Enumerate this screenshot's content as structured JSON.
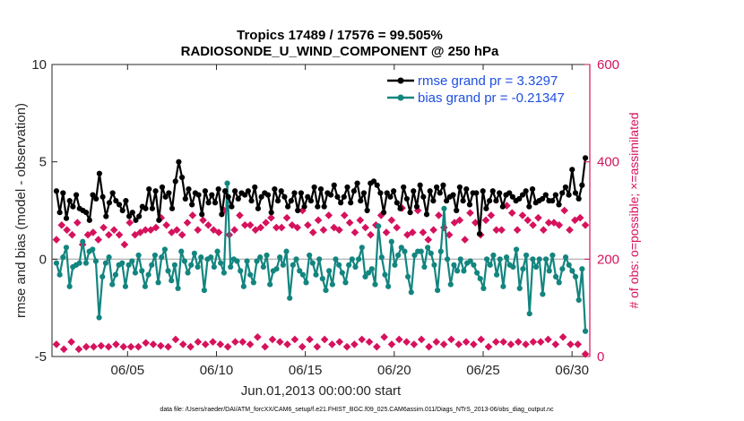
{
  "chart_data": {
    "type": "line",
    "title_line1": "Tropics 17489 / 17576 = 99.505%",
    "title_line2": "RADIOSONDE_U_WIND_COMPONENT @ 250 hPa",
    "xlabel": "Jun.01,2013 00:00:00 start",
    "ylabel": "rmse and bias (model - observation)",
    "ylabel_right": "# of obs: o=possible; ×=assimilated",
    "footnote": "data file: /Users/raeder/DAI/ATM_forcXX/CAM6_setup/f.e21.FHIST_BGC.f09_025.CAM6assim.011/Diags_NTrS_2013-06/obs_diag_output.nc",
    "x_ticks": [
      5,
      10,
      15,
      20,
      25,
      30
    ],
    "x_tick_labels": [
      "06/05",
      "06/10",
      "06/15",
      "06/20",
      "06/25",
      "06/30"
    ],
    "xlim": [
      0.75,
      31.0
    ],
    "ylim": [
      -5,
      10
    ],
    "y_ticks": [
      -5,
      0,
      5,
      10
    ],
    "y_tick_labels": [
      "-5",
      "0",
      "5",
      "10"
    ],
    "ylim_right": [
      0,
      600
    ],
    "y_ticks_right": [
      0,
      200,
      400,
      600
    ],
    "y_tick_labels_right": [
      "0",
      "200",
      "400",
      "600"
    ],
    "colors": {
      "rmse": "#000000",
      "bias": "#13857f",
      "obs": "#d6125d",
      "zero_line": "#b8b8b8",
      "legend_text": "#1f4fe0"
    },
    "series": [
      {
        "name": "rmse",
        "legend": "rmse grand pr = 3.3297",
        "values": [
          3.5,
          2.4,
          3.4,
          2.1,
          3.0,
          2.7,
          3.3,
          2.6,
          2.5,
          2.4,
          2.0,
          3.3,
          3.1,
          4.4,
          3.2,
          2.2,
          2.9,
          3.4,
          3.0,
          2.8,
          2.5,
          3.0,
          2.2,
          2.4,
          2.0,
          2.2,
          2.7,
          2.6,
          3.6,
          2.6,
          3.5,
          2.0,
          3.7,
          3.2,
          3.4,
          2.6,
          4.0,
          5.0,
          4.2,
          3.1,
          3.6,
          2.8,
          3.4,
          3.3,
          2.3,
          3.5,
          2.9,
          3.3,
          2.9,
          3.6,
          2.3,
          3.5,
          3.2,
          2.7,
          3.5,
          3.1,
          3.4,
          3.3,
          3.5,
          3.0,
          3.7,
          2.6,
          3.2,
          3.4,
          3.3,
          2.4,
          3.6,
          3.0,
          3.5,
          3.2,
          2.7,
          3.0,
          3.4,
          2.5,
          3.4,
          2.7,
          3.2,
          3.0,
          3.7,
          2.7,
          3.6,
          2.7,
          3.4,
          3.3,
          3.8,
          3.2,
          2.9,
          3.2,
          3.7,
          2.9,
          3.5,
          3.9,
          3.0,
          3.4,
          2.5,
          3.9,
          4.0,
          3.8,
          3.4,
          2.4,
          3.4,
          3.2,
          3.5,
          2.9,
          2.6,
          3.7,
          3.1,
          2.4,
          3.5,
          2.7,
          3.8,
          3.2,
          2.3,
          3.5,
          3.0,
          3.7,
          3.4,
          3.8,
          3.0,
          3.2,
          3.3,
          2.5,
          3.7,
          3.0,
          3.6,
          2.8,
          3.4,
          3.4,
          1.3,
          3.5,
          2.6,
          3.0,
          3.5,
          3.0,
          3.4,
          2.7,
          3.3,
          3.4,
          3.2,
          3.0,
          3.1,
          3.3,
          3.5,
          2.7,
          3.6,
          2.9,
          3.0,
          3.1,
          3.3,
          3.0,
          3.0,
          3.3,
          2.8,
          3.4,
          3.7,
          3.3,
          4.6,
          3.4,
          3.1,
          3.8,
          5.2
        ]
      },
      {
        "name": "bias",
        "legend": "bias grand pr = -0.21347",
        "values": [
          -0.2,
          -0.8,
          0.1,
          0.6,
          -1.4,
          -0.4,
          -0.3,
          -0.2,
          0.9,
          -0.2,
          0.4,
          0.5,
          -0.1,
          -3.0,
          -0.9,
          -0.2,
          0.1,
          -1.3,
          -0.8,
          -0.3,
          -0.2,
          -1.4,
          -0.3,
          -0.1,
          -0.7,
          0.2,
          -0.6,
          -1.4,
          -0.8,
          -0.3,
          0.2,
          -1.2,
          0.1,
          0.5,
          -0.6,
          -1.1,
          -0.3,
          -1.5,
          0.4,
          -0.1,
          -0.7,
          -0.3,
          0.3,
          -0.4,
          0.1,
          -1.6,
          0.0,
          0.1,
          -0.4,
          0.4,
          -0.2,
          -0.7,
          3.9,
          -0.4,
          0.0,
          -0.1,
          -0.6,
          -1.4,
          -0.1,
          -0.8,
          -1.2,
          -0.1,
          0.1,
          -0.4,
          0.2,
          -1.3,
          -0.6,
          -0.5,
          0.1,
          -0.3,
          0.4,
          -2.0,
          -0.3,
          0.0,
          -0.6,
          -0.8,
          -1.2,
          0.2,
          -0.2,
          -0.8,
          0.0,
          -1.0,
          -1.6,
          -0.6,
          -1.3,
          0.0,
          -0.3,
          -0.7,
          -1.2,
          -0.3,
          0.0,
          -0.4,
          0.0,
          0.6,
          -0.9,
          -0.7,
          -0.5,
          -1.3,
          1.7,
          0.1,
          -0.8,
          -1.4,
          0.9,
          -0.3,
          0.2,
          0.6,
          0.4,
          -0.9,
          -1.7,
          0.2,
          0.4,
          0.4,
          -0.4,
          0.6,
          0.3,
          -0.3,
          -1.6,
          0.4,
          2.6,
          0.0,
          -1.3,
          -0.3,
          -0.6,
          0.0,
          -0.6,
          -0.2,
          -0.1,
          -0.3,
          -0.7,
          -1.0,
          -1.5,
          0.0,
          -0.3,
          0.2,
          -0.8,
          0.0,
          -1.4,
          0.1,
          -0.3,
          -0.4,
          0.5,
          -1.5,
          -0.5,
          0.2,
          -2.8,
          0.0,
          -0.4,
          0.0,
          -1.8,
          0.0,
          -0.6,
          0.2,
          -0.9,
          -1.2,
          -0.5,
          0.1,
          -0.3,
          -0.6,
          -0.9,
          -2.1,
          -0.5,
          -3.7
        ]
      },
      {
        "name": "obs_possible_upper",
        "values": [
          240,
          270,
          260,
          250,
          275,
          230,
          250,
          255,
          240,
          265,
          250,
          260,
          250,
          230,
          275,
          250,
          255,
          260,
          260,
          265,
          285,
          270,
          255,
          260,
          250,
          275,
          290,
          260,
          280,
          270,
          260,
          255,
          300,
          250,
          260,
          290,
          270,
          270,
          260,
          265,
          275,
          285,
          265,
          265,
          285,
          270,
          265,
          300,
          270,
          255,
          280,
          260,
          290,
          265,
          260,
          290,
          275,
          255,
          280,
          265,
          250,
          270,
          290,
          255,
          280,
          265,
          305,
          250,
          255,
          300,
          255,
          240,
          260,
          290,
          265,
          250,
          275,
          280,
          240,
          295,
          275,
          250,
          280,
          290,
          260,
          260,
          310,
          295,
          260,
          290,
          280,
          270,
          285,
          260,
          275,
          275,
          270,
          300,
          260,
          280,
          285,
          270
        ]
      },
      {
        "name": "obs_possible_lower",
        "values": [
          25,
          15,
          30,
          15,
          20,
          20,
          22,
          20,
          25,
          20,
          20,
          20,
          28,
          25,
          22,
          20,
          35,
          25,
          20,
          30,
          25,
          30,
          25,
          20,
          30,
          30,
          25,
          40,
          20,
          35,
          30,
          25,
          35,
          20,
          35,
          20,
          35,
          25,
          30,
          20,
          25,
          35,
          30,
          20,
          40,
          25,
          35,
          30,
          25,
          35,
          20,
          30,
          25,
          35,
          25,
          30,
          25,
          35,
          20,
          30,
          30,
          25,
          30,
          25,
          30,
          30,
          35,
          25,
          40,
          25,
          25,
          5
        ]
      }
    ]
  }
}
